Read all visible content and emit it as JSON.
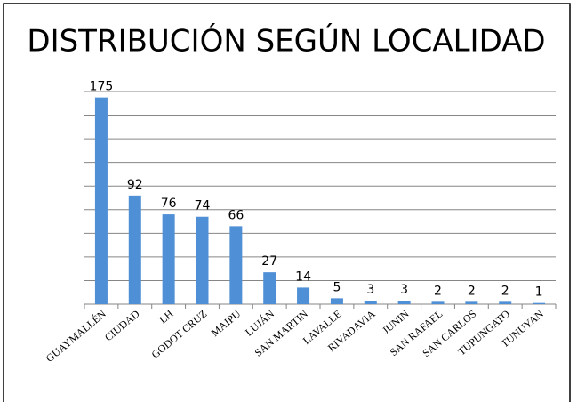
{
  "chart_data": {
    "type": "bar",
    "title": "DISTRIBUCIÓN SEGÚN LOCALIDAD",
    "categories": [
      "GUAYMALLÉN",
      "CIUDAD",
      "LH",
      "GODOT CRUZ",
      "MAIPU",
      "LUJÁN",
      "SAN MARTIN",
      "LAVALLE",
      "RIVADAVIA",
      "JUNIN",
      "SAN RAFAEL",
      "SAN CARLOS",
      "TUPUNGATO",
      "TUNUYAN"
    ],
    "values": [
      175,
      92,
      76,
      74,
      66,
      27,
      14,
      5,
      3,
      3,
      2,
      2,
      2,
      1
    ],
    "color": "#4f8fd6",
    "ylim": [
      0,
      180
    ],
    "yticks": [
      0,
      20,
      40,
      60,
      80,
      100,
      120,
      140,
      160,
      180
    ],
    "grid": true
  }
}
